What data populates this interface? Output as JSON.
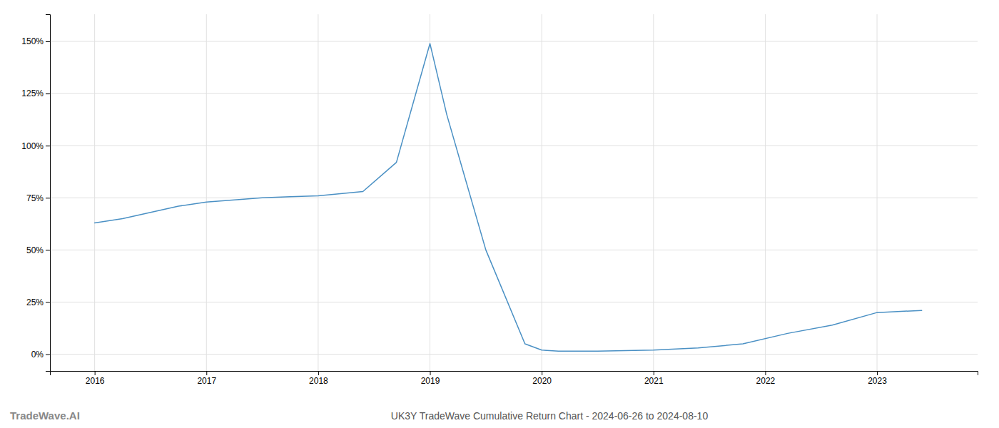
{
  "chart_data": {
    "type": "line",
    "title": "UK3Y TradeWave Cumulative Return Chart - 2024-06-26 to 2024-08-10",
    "annotations": [
      "TradeWave.AI"
    ],
    "x": [
      2016.0,
      2016.25,
      2016.5,
      2016.75,
      2017.0,
      2017.25,
      2017.5,
      2017.75,
      2018.0,
      2018.4,
      2018.7,
      2019.0,
      2019.15,
      2019.5,
      2019.85,
      2020.0,
      2020.15,
      2020.5,
      2021.0,
      2021.4,
      2021.8,
      2022.2,
      2022.6,
      2023.0,
      2023.4
    ],
    "values": [
      63,
      65,
      68,
      71,
      73,
      74,
      75,
      75.5,
      76,
      78,
      92,
      149,
      115,
      50,
      5,
      2,
      1.5,
      1.5,
      2,
      3,
      5,
      10,
      14,
      20,
      21
    ],
    "color": "#4a90c4",
    "xlim": [
      2015.6,
      2023.9
    ],
    "ylim": [
      -8,
      163
    ],
    "xticks": [
      2016,
      2017,
      2018,
      2019,
      2020,
      2021,
      2022,
      2023
    ],
    "yticks": [
      {
        "value": 0,
        "label": "0%"
      },
      {
        "value": 25,
        "label": "25%"
      },
      {
        "value": 50,
        "label": "50%"
      },
      {
        "value": 75,
        "label": "75%"
      },
      {
        "value": 100,
        "label": "100%"
      },
      {
        "value": 125,
        "label": "125%"
      },
      {
        "value": 150,
        "label": "150%"
      }
    ],
    "grid": true
  }
}
